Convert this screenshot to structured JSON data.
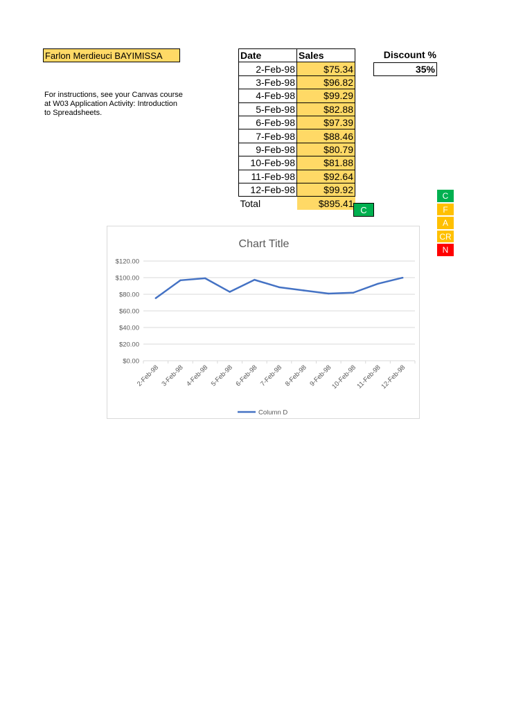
{
  "student_name": "Farlon Merdieuci BAYIMISSA",
  "instructions": "For instructions, see your Canvas course at W03 Application Activity: Introduction to Spreadsheets.",
  "table": {
    "headers": [
      "Date",
      "Sales"
    ],
    "rows": [
      {
        "date": "2-Feb-98",
        "sales": "$75.34"
      },
      {
        "date": "3-Feb-98",
        "sales": "$96.82"
      },
      {
        "date": "4-Feb-98",
        "sales": "$99.29"
      },
      {
        "date": "5-Feb-98",
        "sales": "$82.88"
      },
      {
        "date": "6-Feb-98",
        "sales": "$97.39"
      },
      {
        "date": "7-Feb-98",
        "sales": "$88.46"
      },
      {
        "date": "9-Feb-98",
        "sales": "$80.79"
      },
      {
        "date": "10-Feb-98",
        "sales": "$81.88"
      },
      {
        "date": "11-Feb-98",
        "sales": "$92.64"
      },
      {
        "date": "12-Feb-98",
        "sales": "$99.92"
      }
    ],
    "total_label": "Total",
    "total_value": "$895.41",
    "total_grade": "C"
  },
  "discount": {
    "label": "Discount %",
    "value": "35%"
  },
  "grade_legend": [
    {
      "label": "C",
      "color": "#00b050"
    },
    {
      "label": "F",
      "color": "#ffc000"
    },
    {
      "label": "A",
      "color": "#ffc000"
    },
    {
      "label": "CR",
      "color": "#ffc000"
    },
    {
      "label": "N",
      "color": "#ff0000"
    }
  ],
  "chart_data": {
    "type": "line",
    "title": "Chart Title",
    "categories": [
      "2-Feb-98",
      "3-Feb-98",
      "4-Feb-98",
      "5-Feb-98",
      "6-Feb-98",
      "7-Feb-98",
      "8-Feb-98",
      "9-Feb-98",
      "10-Feb-98",
      "11-Feb-98",
      "12-Feb-98"
    ],
    "series": [
      {
        "name": "Column D",
        "values": [
          75.34,
          96.82,
          99.29,
          82.88,
          97.39,
          88.46,
          84.6,
          80.79,
          81.88,
          92.64,
          99.92
        ],
        "color": "#4472c4"
      }
    ],
    "y_ticks": [
      "$0.00",
      "$20.00",
      "$40.00",
      "$60.00",
      "$80.00",
      "$100.00",
      "$120.00"
    ],
    "ylim": [
      0,
      120
    ],
    "grid": true,
    "legend": "bottom"
  }
}
